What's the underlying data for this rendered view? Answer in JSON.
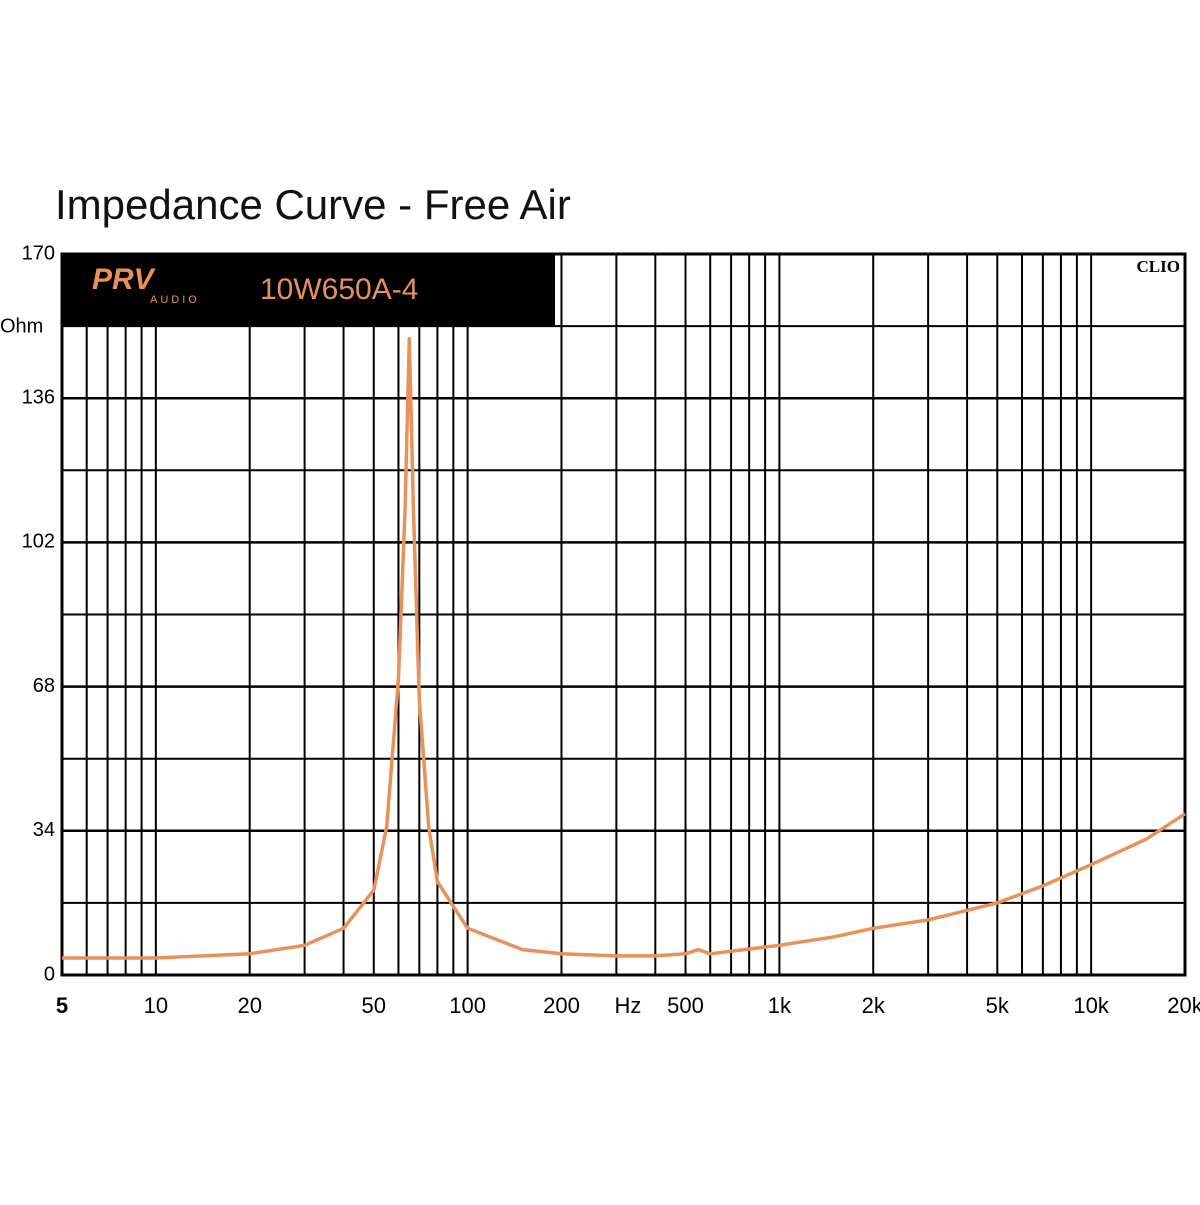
{
  "chart_data": {
    "type": "line",
    "title": "Impedance Curve - Free Air",
    "brand": "PRV",
    "brand_sub": "AUDIO",
    "model": "10W650A-4",
    "software": "CLIO",
    "y_label": "Ohm",
    "x_label": "Hz",
    "xscale": "log",
    "grid": true,
    "color": "#e8915a",
    "x": [
      5,
      10,
      20,
      30,
      40,
      50,
      55,
      60,
      63,
      65,
      67,
      70,
      75,
      80,
      100,
      150,
      200,
      300,
      400,
      500,
      550,
      600,
      1000,
      1500,
      2000,
      3000,
      5000,
      7000,
      10000,
      15000,
      20000
    ],
    "values": [
      4,
      4,
      5,
      7,
      11,
      20,
      35,
      70,
      110,
      150,
      110,
      65,
      35,
      22,
      11,
      6,
      5,
      4.5,
      4.5,
      5,
      6,
      5,
      7,
      9,
      11,
      13,
      17,
      21,
      26,
      32,
      38
    ],
    "xlim": [
      5,
      20000
    ],
    "ylim": [
      0,
      170
    ],
    "xticks": [
      5,
      10,
      20,
      50,
      100,
      200,
      500,
      {
        "value": 1000,
        "label": "1k"
      },
      {
        "value": 2000,
        "label": "2k"
      },
      {
        "value": 5000,
        "label": "5k"
      },
      {
        "value": 10000,
        "label": "10k"
      },
      {
        "value": 20000,
        "label": "20k"
      }
    ],
    "xminor": [
      6,
      7,
      8,
      9,
      30,
      40,
      60,
      70,
      80,
      90,
      300,
      400,
      600,
      700,
      800,
      900,
      3000,
      4000,
      6000,
      7000,
      8000,
      9000
    ],
    "yticks": [
      0,
      34,
      68,
      102,
      136,
      170
    ],
    "yminor": [
      17,
      51,
      85,
      119,
      153
    ]
  }
}
